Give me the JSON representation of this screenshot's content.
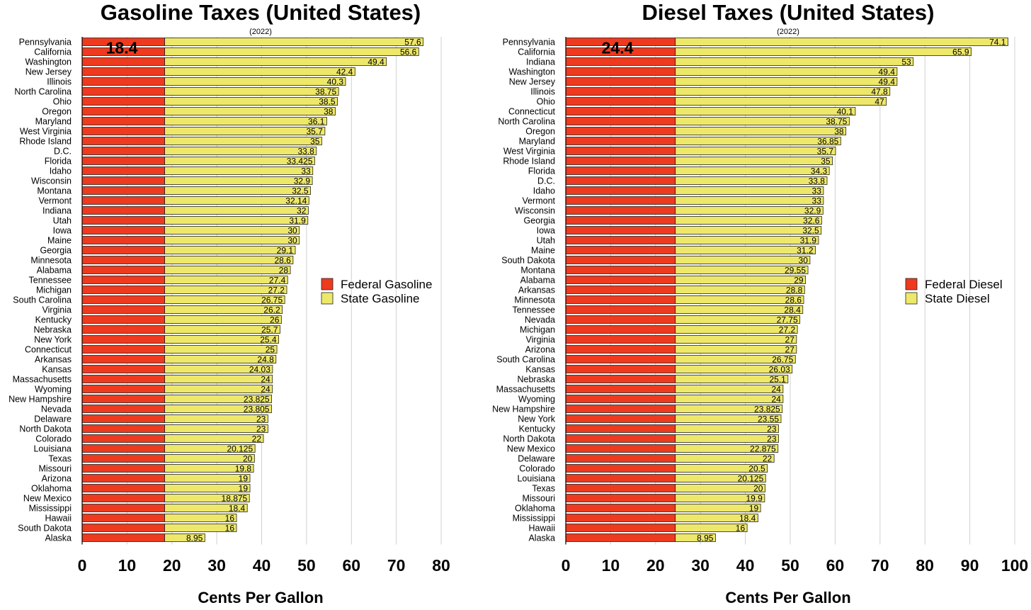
{
  "colors": {
    "federal": "#ee3a1f",
    "state": "#eee86a",
    "stroke": "#222222",
    "grid": "#d0d0d0"
  },
  "chart_data": [
    {
      "type": "bar",
      "orientation": "horizontal",
      "stacked": true,
      "title": "Gasoline Taxes (United States)",
      "subtitle": "(2022)",
      "xlabel": "Cents Per Gallon",
      "ylabel": "",
      "xlim": [
        0,
        80
      ],
      "xticks": [
        0,
        10,
        20,
        30,
        40,
        50,
        60,
        70,
        80
      ],
      "grid": true,
      "legend_position": "right",
      "federal_label": "18.4",
      "categories": [
        "Pennsylvania",
        "California",
        "Washington",
        "New Jersey",
        "Illinois",
        "North Carolina",
        "Ohio",
        "Oregon",
        "Maryland",
        "West Virginia",
        "Rhode Island",
        "D.C.",
        "Florida",
        "Idaho",
        "Wisconsin",
        "Montana",
        "Vermont",
        "Indiana",
        "Utah",
        "Iowa",
        "Maine",
        "Georgia",
        "Minnesota",
        "Alabama",
        "Tennessee",
        "Michigan",
        "South Carolina",
        "Virginia",
        "Kentucky",
        "Nebraska",
        "New York",
        "Connecticut",
        "Arkansas",
        "Kansas",
        "Massachusetts",
        "Wyoming",
        "New Hampshire",
        "Nevada",
        "Delaware",
        "North Dakota",
        "Colorado",
        "Louisiana",
        "Texas",
        "Missouri",
        "Arizona",
        "Oklahoma",
        "New Mexico",
        "Mississippi",
        "Hawaii",
        "South Dakota",
        "Alaska"
      ],
      "series": [
        {
          "name": "Federal Gasoline",
          "values": [
            18.4,
            18.4,
            18.4,
            18.4,
            18.4,
            18.4,
            18.4,
            18.4,
            18.4,
            18.4,
            18.4,
            18.4,
            18.4,
            18.4,
            18.4,
            18.4,
            18.4,
            18.4,
            18.4,
            18.4,
            18.4,
            18.4,
            18.4,
            18.4,
            18.4,
            18.4,
            18.4,
            18.4,
            18.4,
            18.4,
            18.4,
            18.4,
            18.4,
            18.4,
            18.4,
            18.4,
            18.4,
            18.4,
            18.4,
            18.4,
            18.4,
            18.4,
            18.4,
            18.4,
            18.4,
            18.4,
            18.4,
            18.4,
            18.4,
            18.4,
            18.4
          ]
        },
        {
          "name": "State Gasoline",
          "values": [
            57.6,
            56.6,
            49.4,
            42.4,
            40.3,
            38.75,
            38.5,
            38,
            36.1,
            35.7,
            35,
            33.8,
            33.425,
            33,
            32.9,
            32.5,
            32.14,
            32,
            31.9,
            30,
            30,
            29.1,
            28.6,
            28,
            27.4,
            27.2,
            26.75,
            26.2,
            26,
            25.7,
            25.4,
            25,
            24.8,
            24.03,
            24,
            24,
            23.825,
            23.805,
            23,
            23,
            22,
            20.125,
            20,
            19.8,
            19,
            19,
            18.875,
            18.4,
            16,
            16,
            8.95
          ]
        }
      ],
      "value_labels": [
        "57.6",
        "56.6",
        "49.4",
        "42.4",
        "40.3",
        "38.75",
        "38.5",
        "38",
        "36.1",
        "35.7",
        "35",
        "33.8",
        "33.425",
        "33",
        "32.9",
        "32.5",
        "32.14",
        "32",
        "31.9",
        "30",
        "30",
        "29.1",
        "28.6",
        "28",
        "27.4",
        "27.2",
        "26.75",
        "26.2",
        "26",
        "25.7",
        "25.4",
        "25",
        "24.8",
        "24.03",
        "24",
        "24",
        "23.825",
        "23.805",
        "23",
        "23",
        "22",
        "20.125",
        "20",
        "19.8",
        "19",
        "19",
        "18.875",
        "18.4",
        "16",
        "16",
        "8.95"
      ]
    },
    {
      "type": "bar",
      "orientation": "horizontal",
      "stacked": true,
      "title": "Diesel Taxes (United States)",
      "subtitle": "(2022)",
      "xlabel": "Cents Per Gallon",
      "ylabel": "",
      "xlim": [
        0,
        100
      ],
      "xticks": [
        0,
        10,
        20,
        30,
        40,
        50,
        60,
        70,
        80,
        90,
        100
      ],
      "grid": true,
      "legend_position": "right",
      "federal_label": "24.4",
      "categories": [
        "Pennsylvania",
        "California",
        "Indiana",
        "Washington",
        "New Jersey",
        "Illinois",
        "Ohio",
        "Connecticut",
        "North Carolina",
        "Oregon",
        "Maryland",
        "West Virginia",
        "Rhode Island",
        "Florida",
        "D.C.",
        "Idaho",
        "Vermont",
        "Wisconsin",
        "Georgia",
        "Iowa",
        "Utah",
        "Maine",
        "South Dakota",
        "Montana",
        "Alabama",
        "Arkansas",
        "Minnesota",
        "Tennessee",
        "Nevada",
        "Michigan",
        "Virginia",
        "Arizona",
        "South Carolina",
        "Kansas",
        "Nebraska",
        "Massachusetts",
        "Wyoming",
        "New Hampshire",
        "New York",
        "Kentucky",
        "North Dakota",
        "New Mexico",
        "Delaware",
        "Colorado",
        "Louisiana",
        "Texas",
        "Missouri",
        "Oklahoma",
        "Mississippi",
        "Hawaii",
        "Alaska"
      ],
      "series": [
        {
          "name": "Federal Diesel",
          "values": [
            24.4,
            24.4,
            24.4,
            24.4,
            24.4,
            24.4,
            24.4,
            24.4,
            24.4,
            24.4,
            24.4,
            24.4,
            24.4,
            24.4,
            24.4,
            24.4,
            24.4,
            24.4,
            24.4,
            24.4,
            24.4,
            24.4,
            24.4,
            24.4,
            24.4,
            24.4,
            24.4,
            24.4,
            24.4,
            24.4,
            24.4,
            24.4,
            24.4,
            24.4,
            24.4,
            24.4,
            24.4,
            24.4,
            24.4,
            24.4,
            24.4,
            24.4,
            24.4,
            24.4,
            24.4,
            24.4,
            24.4,
            24.4,
            24.4,
            24.4,
            24.4
          ]
        },
        {
          "name": "State Diesel",
          "values": [
            74.1,
            65.9,
            53,
            49.4,
            49.4,
            47.8,
            47,
            40.1,
            38.75,
            38,
            36.85,
            35.7,
            35,
            34.3,
            33.8,
            33,
            33,
            32.9,
            32.6,
            32.5,
            31.9,
            31.2,
            30,
            29.55,
            29,
            28.8,
            28.6,
            28.4,
            27.75,
            27.2,
            27,
            27,
            26.75,
            26.03,
            25.1,
            24,
            24,
            23.825,
            23.55,
            23,
            23,
            22.875,
            22,
            20.5,
            20.125,
            20,
            19.9,
            19,
            18.4,
            16,
            8.95
          ]
        }
      ],
      "value_labels": [
        "74.1",
        "65.9",
        "53",
        "49.4",
        "49.4",
        "47.8",
        "47",
        "40.1",
        "38.75",
        "38",
        "36.85",
        "35.7",
        "35",
        "34.3",
        "33.8",
        "33",
        "33",
        "32.9",
        "32.6",
        "32.5",
        "31.9",
        "31.2",
        "30",
        "29.55",
        "29",
        "28.8",
        "28.6",
        "28.4",
        "27.75",
        "27.2",
        "27",
        "27",
        "26.75",
        "26.03",
        "25.1",
        "24",
        "24",
        "23.825",
        "23.55",
        "23",
        "23",
        "22.875",
        "22",
        "20.5",
        "20.125",
        "20",
        "19.9",
        "19",
        "18.4",
        "16",
        "8.95"
      ]
    }
  ]
}
